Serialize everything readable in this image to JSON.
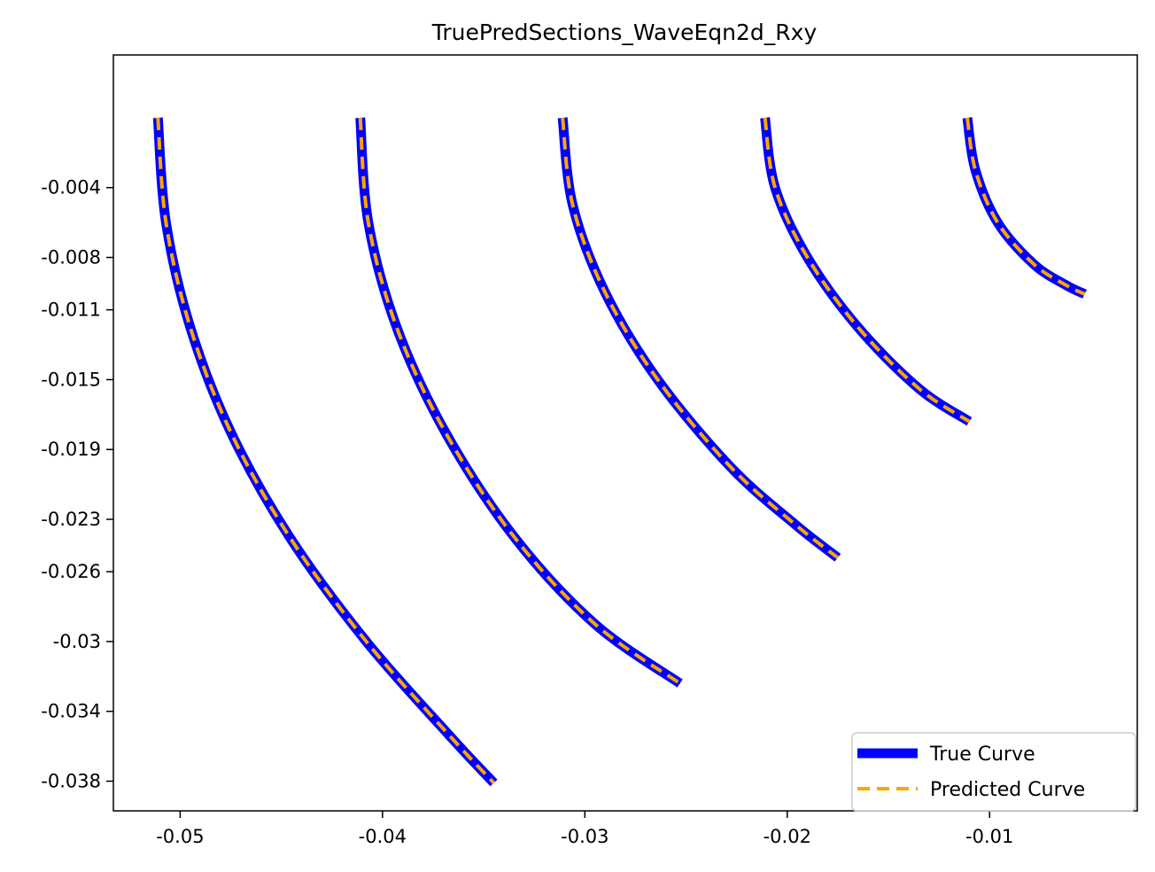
{
  "chart_data": {
    "type": "line",
    "title": "TruePredSections_WaveEqn2d_Rxy",
    "xlabel": "",
    "ylabel": "",
    "xlim": [
      -0.0533,
      -0.0027
    ],
    "ylim": [
      -0.0397,
      0.0036
    ],
    "x_ticks": [
      -0.05,
      -0.04,
      -0.03,
      -0.02,
      -0.01
    ],
    "x_tick_labels": [
      "-0.05",
      "-0.04",
      "-0.03",
      "-0.02",
      "-0.01"
    ],
    "y_ticks": [
      -0.038,
      -0.034,
      -0.03,
      -0.026,
      -0.023,
      -0.019,
      -0.015,
      -0.011,
      -0.008,
      -0.004
    ],
    "y_tick_labels": [
      "-0.038",
      "-0.034",
      "-0.03",
      "-0.026",
      "-0.023",
      "-0.019",
      "-0.015",
      "-0.011",
      "-0.008",
      "-0.004"
    ],
    "grid": false,
    "legend_position": "bottom-right",
    "colors": {
      "true_curve": "#0000ff",
      "predicted_curve": "#ffa500"
    },
    "series": [
      {
        "name": "True Curve",
        "style": "solid",
        "color": "#0000ff"
      },
      {
        "name": "Predicted Curve",
        "style": "dashed",
        "color": "#ffa500"
      }
    ],
    "curves": [
      {
        "x": [
          -0.0511,
          -0.0507,
          -0.0495,
          -0.0475,
          -0.0446,
          -0.0408,
          -0.0366,
          -0.0345
        ],
        "y": [
          0.0,
          -0.006,
          -0.012,
          -0.018,
          -0.024,
          -0.03,
          -0.0355,
          -0.0381
        ]
      },
      {
        "x": [
          -0.0411,
          -0.0407,
          -0.0393,
          -0.0369,
          -0.0335,
          -0.0295,
          -0.0253
        ],
        "y": [
          0.0,
          -0.006,
          -0.012,
          -0.018,
          -0.024,
          -0.029,
          -0.0324
        ]
      },
      {
        "x": [
          -0.0311,
          -0.0306,
          -0.029,
          -0.0264,
          -0.0228,
          -0.0196,
          -0.0175
        ],
        "y": [
          0.0,
          -0.005,
          -0.01,
          -0.015,
          -0.02,
          -0.0233,
          -0.0252
        ]
      },
      {
        "x": [
          -0.0211,
          -0.0206,
          -0.019,
          -0.0165,
          -0.0135,
          -0.011
        ],
        "y": [
          0.0,
          -0.004,
          -0.008,
          -0.012,
          -0.0155,
          -0.0174
        ]
      },
      {
        "x": [
          -0.0111,
          -0.0107,
          -0.0096,
          -0.0078,
          -0.0062,
          -0.0053
        ],
        "y": [
          0.0,
          -0.003,
          -0.006,
          -0.0084,
          -0.0096,
          -0.0101
        ]
      }
    ]
  }
}
